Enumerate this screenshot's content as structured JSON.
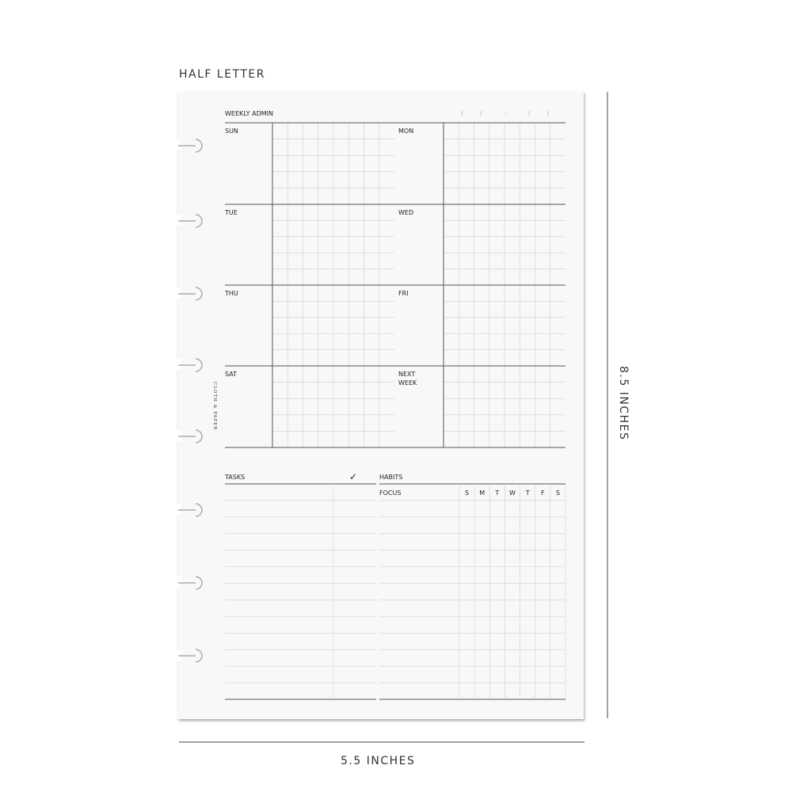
{
  "size_label": "HALF LETTER",
  "width_label": "5.5 INCHES",
  "height_label": "8.5 INCHES",
  "brand": "CLOTH & PAPER",
  "header": {
    "title": "WEEKLY ADMIN",
    "date_marks": [
      "/",
      "/",
      "-",
      "/",
      "/"
    ]
  },
  "days": [
    "SUN",
    "MON",
    "TUE",
    "WED",
    "THU",
    "FRI",
    "SAT",
    "NEXT",
    "WEEK"
  ],
  "tasks": {
    "title": "TASKS",
    "check_icon": "check-icon",
    "check_glyph": "✓"
  },
  "habits": {
    "title": "HABITS",
    "focus_label": "FOCUS",
    "weekdays": [
      "S",
      "M",
      "T",
      "W",
      "T",
      "F",
      "S"
    ]
  },
  "colors": {
    "paper": "#f8f8f8",
    "line_dark": "#555555",
    "line_light": "#cfcfcf",
    "text": "#222222"
  }
}
